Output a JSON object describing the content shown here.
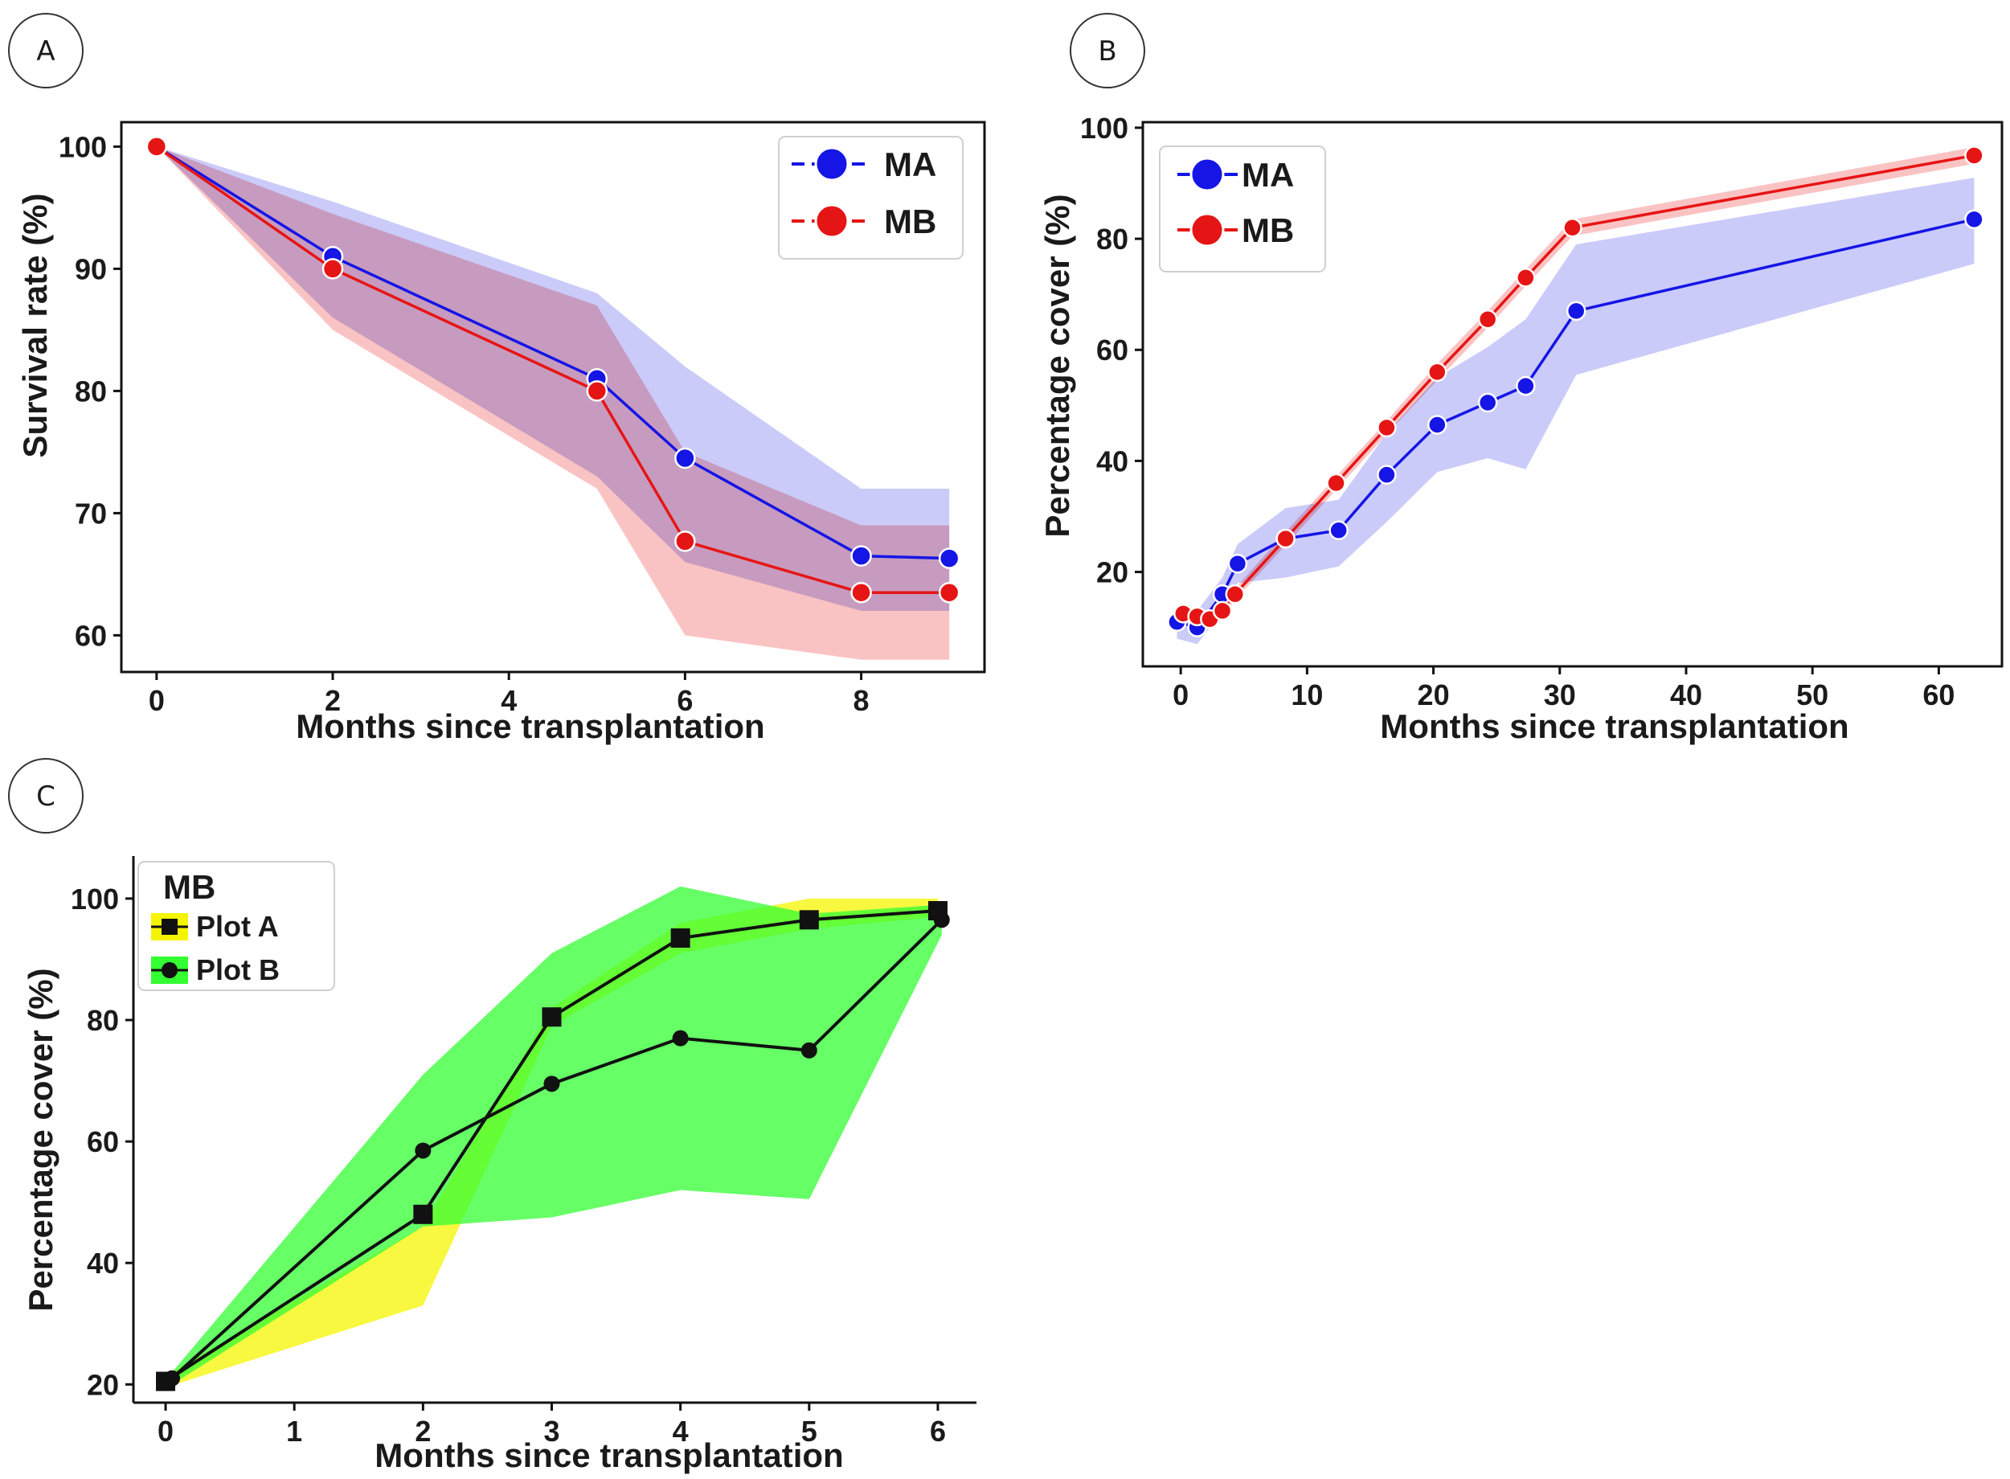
{
  "colors": {
    "MA_line": "#1515e6",
    "MA_band": "#c8c8fa",
    "MB_line": "#e61515",
    "MB_band": "#fac0c0",
    "overlap_band": "#d2a6cc",
    "plotA_band": "#f5f500",
    "plotB_band": "#33ff33",
    "plotAB_overlap": "#44ee00",
    "marker_edge": "#ffffff",
    "ink": "#111111"
  },
  "chart_data": [
    {
      "id": "A",
      "panel_label": "A",
      "type": "line",
      "xlabel": "Months since transplantation",
      "ylabel": "Survival rate (%)",
      "xlim": [
        -0.4,
        9.4
      ],
      "ylim": [
        57,
        102
      ],
      "xticks": [
        0,
        2,
        4,
        6,
        8
      ],
      "yticks": [
        60,
        70,
        80,
        90,
        100
      ],
      "frame": "box",
      "legend": "top-right",
      "series": [
        {
          "name": "MA",
          "x": [
            0,
            2,
            5,
            6,
            8,
            9
          ],
          "y": [
            100,
            91,
            81,
            74.5,
            66.5,
            66.3
          ],
          "lower": [
            100,
            86,
            73,
            66,
            62,
            62
          ],
          "upper": [
            100,
            95.5,
            88,
            82,
            72,
            72
          ],
          "color": "MA_line",
          "band": "MA_band",
          "marker": "circle"
        },
        {
          "name": "MB",
          "x": [
            0,
            2,
            5,
            6,
            8,
            9
          ],
          "y": [
            100,
            90,
            80,
            67.7,
            63.5,
            63.5
          ],
          "lower": [
            100,
            85,
            72,
            60,
            58,
            58
          ],
          "upper": [
            100,
            94.5,
            87,
            75,
            69,
            69
          ],
          "color": "MB_line",
          "band": "MB_band",
          "marker": "circle"
        }
      ]
    },
    {
      "id": "B",
      "panel_label": "B",
      "type": "line",
      "xlabel": "Months since transplantation",
      "ylabel": "Percentage cover (%)",
      "xlim": [
        -3,
        65
      ],
      "ylim": [
        3,
        101
      ],
      "xticks": [
        0,
        10,
        20,
        30,
        40,
        50,
        60
      ],
      "yticks": [
        20,
        40,
        60,
        80,
        100
      ],
      "frame": "box",
      "legend": "top-left",
      "series": [
        {
          "name": "MA",
          "x": [
            -0.3,
            1.3,
            3.3,
            4.5,
            8.3,
            12.5,
            16.3,
            20.3,
            24.3,
            27.3,
            31.3,
            62.8
          ],
          "y": [
            11,
            10,
            16,
            21.5,
            26,
            27.5,
            37.5,
            46.5,
            50.5,
            53.5,
            67,
            83.5
          ],
          "lower": [
            8,
            7,
            13,
            18,
            19,
            21,
            29,
            38,
            40.5,
            38.5,
            55.5,
            75.5
          ],
          "upper": [
            13,
            13,
            19,
            25,
            31.5,
            33,
            45,
            55,
            60.5,
            65.5,
            79,
            91
          ],
          "color": "MA_line",
          "band": "MA_band",
          "marker": "circle"
        },
        {
          "name": "MB",
          "x": [
            0.2,
            1.3,
            2.3,
            3.3,
            4.3,
            8.3,
            12.3,
            16.3,
            20.3,
            24.3,
            27.3,
            31.0,
            62.8
          ],
          "y": [
            12.5,
            12,
            11.5,
            13,
            16,
            26,
            36,
            46,
            56,
            65.5,
            73,
            82,
            95
          ],
          "lower": [
            11.5,
            11,
            10.5,
            12,
            15,
            24.8,
            34.8,
            44.8,
            54.5,
            64,
            71.5,
            80.5,
            93.5
          ],
          "upper": [
            13.5,
            13,
            12.5,
            14,
            17,
            27.2,
            37.2,
            47.2,
            57.5,
            67,
            74.5,
            83.5,
            96.5
          ],
          "color": "MB_line",
          "band": "MB_band",
          "marker": "circle"
        }
      ]
    },
    {
      "id": "C",
      "panel_label": "C",
      "type": "line",
      "xlabel": "Months since transplantation",
      "ylabel": "Percentage cover (%)",
      "xlim": [
        -0.25,
        6.3
      ],
      "ylim": [
        17,
        107
      ],
      "xticks": [
        0,
        1,
        2,
        3,
        4,
        5,
        6
      ],
      "yticks": [
        20,
        40,
        60,
        80,
        100
      ],
      "frame": "left-bottom",
      "legend": "top-left",
      "legend_title": "MB",
      "series": [
        {
          "name": "Plot A",
          "x": [
            0,
            2,
            3,
            4,
            5,
            6
          ],
          "y": [
            20.5,
            48,
            80.5,
            93.5,
            96.5,
            98
          ],
          "lower": [
            19.5,
            33,
            79,
            91,
            95,
            97
          ],
          "upper": [
            21.5,
            46,
            82,
            96,
            100,
            100
          ],
          "color": "ink",
          "band": "plotA_band",
          "marker": "square"
        },
        {
          "name": "Plot B",
          "x": [
            0.05,
            2,
            3,
            4,
            5,
            6.03
          ],
          "y": [
            21,
            58.5,
            69.5,
            77,
            75,
            96.5
          ],
          "lower": [
            20,
            46,
            47.5,
            52,
            50.5,
            94
          ],
          "upper": [
            22,
            71,
            91,
            102,
            97.5,
            99
          ],
          "color": "ink",
          "band": "plotB_band",
          "marker": "circle"
        }
      ]
    }
  ]
}
